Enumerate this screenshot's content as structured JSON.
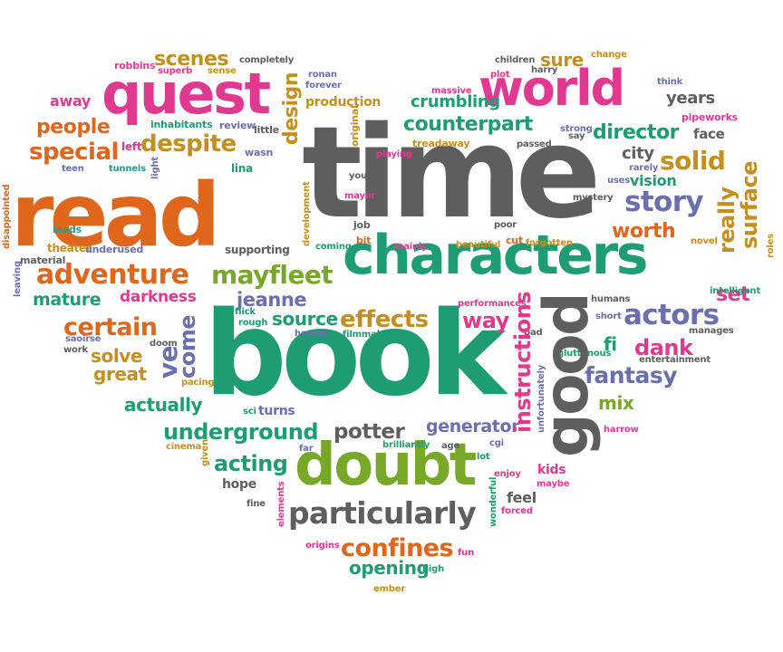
{
  "palette": {
    "orange": "#E0661C",
    "gray": "#5E5E5E",
    "green": "#1E9D74",
    "magenta": "#E0398F",
    "purple": "#6A6FB0",
    "olive": "#C58F1E",
    "lime": "#78A828",
    "teal": "#2A9A8A"
  },
  "words": [
    {
      "text": "read",
      "color": "orange"
    },
    {
      "text": "time",
      "color": "gray"
    },
    {
      "text": "book",
      "color": "green"
    },
    {
      "text": "characters",
      "color": "green"
    },
    {
      "text": "doubt",
      "color": "lime"
    },
    {
      "text": "quest",
      "color": "magenta"
    },
    {
      "text": "world",
      "color": "magenta"
    },
    {
      "text": "good",
      "color": "gray"
    },
    {
      "text": "particularly",
      "color": "gray"
    },
    {
      "text": "adventure",
      "color": "orange"
    },
    {
      "text": "mayfleet",
      "color": "lime"
    },
    {
      "text": "confines",
      "color": "orange"
    },
    {
      "text": "counterpart",
      "color": "green"
    },
    {
      "text": "despite",
      "color": "olive"
    },
    {
      "text": "actors",
      "color": "purple"
    },
    {
      "text": "story",
      "color": "purple"
    },
    {
      "text": "effects",
      "color": "olive"
    },
    {
      "text": "people",
      "color": "orange"
    },
    {
      "text": "special",
      "color": "orange"
    },
    {
      "text": "scenes",
      "color": "olive"
    },
    {
      "text": "solid",
      "color": "olive"
    },
    {
      "text": "director",
      "color": "green"
    },
    {
      "text": "certain",
      "color": "orange"
    },
    {
      "text": "underground",
      "color": "green"
    },
    {
      "text": "acting",
      "color": "green"
    },
    {
      "text": "potter",
      "color": "gray"
    },
    {
      "text": "fantasy",
      "color": "purple"
    },
    {
      "text": "dank",
      "color": "magenta"
    },
    {
      "text": "way",
      "color": "magenta"
    },
    {
      "text": "worth",
      "color": "orange"
    },
    {
      "text": "jeanne",
      "color": "purple"
    },
    {
      "text": "source",
      "color": "green"
    },
    {
      "text": "solve",
      "color": "olive"
    },
    {
      "text": "great",
      "color": "olive"
    },
    {
      "text": "actually",
      "color": "green"
    },
    {
      "text": "darkness",
      "color": "magenta"
    },
    {
      "text": "mature",
      "color": "green"
    },
    {
      "text": "generator",
      "color": "purple"
    },
    {
      "text": "opening",
      "color": "green"
    },
    {
      "text": "set",
      "color": "magenta"
    },
    {
      "text": "sure",
      "color": "olive"
    },
    {
      "text": "city",
      "color": "gray"
    },
    {
      "text": "years",
      "color": "gray"
    },
    {
      "text": "vision",
      "color": "green"
    },
    {
      "text": "mix",
      "color": "lime"
    },
    {
      "text": "fi",
      "color": "green"
    },
    {
      "text": "kids",
      "color": "magenta"
    },
    {
      "text": "feel",
      "color": "gray"
    },
    {
      "text": "hope",
      "color": "gray"
    },
    {
      "text": "away",
      "color": "magenta"
    },
    {
      "text": "face",
      "color": "gray"
    },
    {
      "text": "crumbling",
      "color": "green"
    },
    {
      "text": "production",
      "color": "olive"
    },
    {
      "text": "lina",
      "color": "green"
    },
    {
      "text": "left",
      "color": "magenta"
    },
    {
      "text": "inhabitants",
      "color": "green"
    },
    {
      "text": "review",
      "color": "purple"
    },
    {
      "text": "little",
      "color": "gray"
    },
    {
      "text": "wasn",
      "color": "purple"
    },
    {
      "text": "supporting",
      "color": "gray"
    },
    {
      "text": "theater",
      "color": "olive"
    },
    {
      "text": "underused",
      "color": "purple"
    },
    {
      "text": "leads",
      "color": "teal"
    },
    {
      "text": "material",
      "color": "gray"
    },
    {
      "text": "teen",
      "color": "purple"
    },
    {
      "text": "tunnels",
      "color": "teal"
    },
    {
      "text": "robbins",
      "color": "magenta"
    },
    {
      "text": "superb",
      "color": "magenta"
    },
    {
      "text": "sense",
      "color": "olive"
    },
    {
      "text": "completely",
      "color": "gray"
    },
    {
      "text": "ronan",
      "color": "purple"
    },
    {
      "text": "forever",
      "color": "purple"
    },
    {
      "text": "children",
      "color": "gray"
    },
    {
      "text": "harry",
      "color": "gray"
    },
    {
      "text": "plot",
      "color": "magenta"
    },
    {
      "text": "change",
      "color": "olive"
    },
    {
      "text": "think",
      "color": "purple"
    },
    {
      "text": "massive",
      "color": "magenta"
    },
    {
      "text": "pipeworks",
      "color": "magenta"
    },
    {
      "text": "strong",
      "color": "purple"
    },
    {
      "text": "say",
      "color": "gray"
    },
    {
      "text": "passed",
      "color": "gray"
    },
    {
      "text": "treadaway",
      "color": "olive"
    },
    {
      "text": "playing",
      "color": "magenta"
    },
    {
      "text": "young",
      "color": "gray"
    },
    {
      "text": "mayor",
      "color": "magenta"
    },
    {
      "text": "rarely",
      "color": "purple"
    },
    {
      "text": "uses",
      "color": "purple"
    },
    {
      "text": "mystery",
      "color": "gray"
    },
    {
      "text": "job",
      "color": "gray"
    },
    {
      "text": "bit",
      "color": "orange"
    },
    {
      "text": "coming",
      "color": "green"
    },
    {
      "text": "mainly",
      "color": "magenta"
    },
    {
      "text": "poor",
      "color": "gray"
    },
    {
      "text": "cut",
      "color": "orange"
    },
    {
      "text": "beautiful",
      "color": "olive"
    },
    {
      "text": "forgotten",
      "color": "olive"
    },
    {
      "text": "novel",
      "color": "olive"
    },
    {
      "text": "intelligent",
      "color": "green"
    },
    {
      "text": "humans",
      "color": "gray"
    },
    {
      "text": "short",
      "color": "purple"
    },
    {
      "text": "manages",
      "color": "gray"
    },
    {
      "text": "performances",
      "color": "magenta"
    },
    {
      "text": "flick",
      "color": "green"
    },
    {
      "text": "rough",
      "color": "green"
    },
    {
      "text": "heroes",
      "color": "purple"
    },
    {
      "text": "filmmakers",
      "color": "green"
    },
    {
      "text": "bad",
      "color": "gray"
    },
    {
      "text": "gluttonous",
      "color": "green"
    },
    {
      "text": "entertainment",
      "color": "gray"
    },
    {
      "text": "saoirse",
      "color": "purple"
    },
    {
      "text": "work",
      "color": "gray"
    },
    {
      "text": "doom",
      "color": "gray"
    },
    {
      "text": "pacing",
      "color": "olive"
    },
    {
      "text": "sci",
      "color": "green"
    },
    {
      "text": "turns",
      "color": "purple"
    },
    {
      "text": "harrow",
      "color": "magenta"
    },
    {
      "text": "cinema",
      "color": "olive"
    },
    {
      "text": "far",
      "color": "purple"
    },
    {
      "text": "brilliantly",
      "color": "green"
    },
    {
      "text": "age",
      "color": "gray"
    },
    {
      "text": "cgi",
      "color": "purple"
    },
    {
      "text": "lot",
      "color": "green"
    },
    {
      "text": "enjoy",
      "color": "magenta"
    },
    {
      "text": "maybe",
      "color": "magenta"
    },
    {
      "text": "forced",
      "color": "magenta"
    },
    {
      "text": "fine",
      "color": "gray"
    },
    {
      "text": "origins",
      "color": "magenta"
    },
    {
      "text": "fun",
      "color": "magenta"
    },
    {
      "text": "high",
      "color": "green"
    },
    {
      "text": "ember",
      "color": "olive"
    },
    {
      "text": "design",
      "color": "olive"
    },
    {
      "text": "original",
      "color": "olive"
    },
    {
      "text": "light",
      "color": "purple"
    },
    {
      "text": "development",
      "color": "olive"
    },
    {
      "text": "disappointed",
      "color": "orange"
    },
    {
      "text": "leaving",
      "color": "purple"
    },
    {
      "text": "ve",
      "color": "purple"
    },
    {
      "text": "come",
      "color": "purple"
    },
    {
      "text": "instructions",
      "color": "magenta"
    },
    {
      "text": "unfortunately",
      "color": "purple"
    },
    {
      "text": "wonderful",
      "color": "green"
    },
    {
      "text": "given",
      "color": "olive"
    },
    {
      "text": "elements",
      "color": "magenta"
    },
    {
      "text": "really",
      "color": "olive"
    },
    {
      "text": "surface",
      "color": "olive"
    },
    {
      "text": "roles",
      "color": "olive"
    }
  ]
}
